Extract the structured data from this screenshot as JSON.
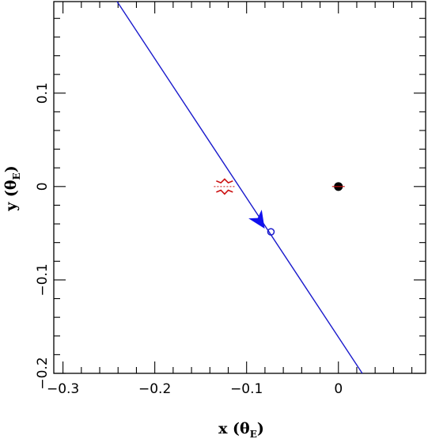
{
  "chart_data": {
    "type": "scatter",
    "xlabel": {
      "prefix": "x (",
      "symbol": "θ",
      "subscript": "E",
      "suffix": ")"
    },
    "ylabel": {
      "prefix": "y (",
      "symbol": "θ",
      "subscript": "E",
      "suffix": ")"
    },
    "xlim": [
      -0.31,
      0.095
    ],
    "ylim": [
      -0.2,
      0.198
    ],
    "x_ticks": [
      {
        "value": -0.3,
        "label": "−0.3"
      },
      {
        "value": -0.2,
        "label": "−0.2"
      },
      {
        "value": -0.1,
        "label": "−0.1"
      },
      {
        "value": 0,
        "label": "0"
      }
    ],
    "y_ticks": [
      {
        "value": -0.2,
        "label": "−0.2"
      },
      {
        "value": -0.1,
        "label": "−0.1"
      },
      {
        "value": 0,
        "label": "0"
      },
      {
        "value": 0.1,
        "label": "0.1"
      }
    ],
    "trajectory": {
      "color": "#1a1acc",
      "points": [
        [
          -0.241,
          0.198
        ],
        [
          0.026,
          -0.2
        ]
      ]
    },
    "source_marker": {
      "x": -0.0735,
      "y": -0.0485,
      "color": "#1a1acc"
    },
    "direction_arrow": {
      "x": -0.086,
      "y": -0.0365,
      "color": "#1010ee"
    },
    "caustic": {
      "color": "#cc1111",
      "center": [
        -0.124,
        0.0
      ],
      "upper": [
        [
          -0.133,
          0.006
        ],
        [
          -0.128,
          0.004
        ],
        [
          -0.124,
          0.008
        ],
        [
          -0.12,
          0.004
        ],
        [
          -0.115,
          0.006
        ]
      ],
      "lower": [
        [
          -0.133,
          -0.006
        ],
        [
          -0.128,
          -0.004
        ],
        [
          -0.124,
          -0.008
        ],
        [
          -0.12,
          -0.004
        ],
        [
          -0.115,
          -0.006
        ]
      ]
    },
    "lens": {
      "x": 0.0,
      "y": 0.0,
      "color": "#000000",
      "inner_color": "#cc1111"
    },
    "grid": false,
    "colors": {
      "axis": "#000000",
      "trajectory": "#1a1acc",
      "caustic": "#cc1111"
    }
  }
}
